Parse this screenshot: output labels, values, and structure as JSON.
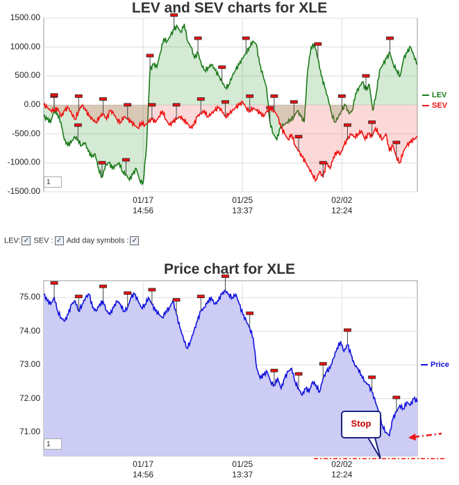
{
  "chart_data": [
    {
      "type": "line",
      "title": "LEV and SEV charts for XLE",
      "yticks": [
        "1500.00",
        "1000.00",
        "500.00",
        "0.00",
        "-500.00",
        "-1000.00",
        "-1500.00"
      ],
      "ytick_values": [
        1500,
        1000,
        500,
        0,
        -500,
        -1000,
        -1500
      ],
      "ylim": [
        -1500,
        1500
      ],
      "xticks": [
        {
          "d": "01/17",
          "t": "14:56"
        },
        {
          "d": "01/25",
          "t": "13:37"
        },
        {
          "d": "02/02",
          "t": "12:24"
        }
      ],
      "grid": true,
      "legend_position": "right",
      "zoom_value": "1",
      "series": [
        {
          "name": "LEV",
          "color": "#1a7a1a",
          "values": [
            -200,
            -250,
            -300,
            -100,
            -150,
            -300,
            -600,
            -700,
            -650,
            -550,
            -600,
            -700,
            -650,
            -800,
            -900,
            -850,
            -1100,
            -1250,
            -1050,
            -1000,
            -1100,
            -1050,
            -1000,
            -1150,
            -1200,
            -1300,
            -1200,
            -1100,
            -1300,
            -1350,
            -700,
            600,
            700,
            650,
            900,
            1150,
            1100,
            1200,
            1300,
            1350,
            1250,
            1400,
            1100,
            1000,
            800,
            900,
            700,
            600,
            650,
            700,
            600,
            500,
            400,
            300,
            350,
            500,
            600,
            700,
            800,
            900,
            1000,
            1100,
            1050,
            700,
            500,
            300,
            -300,
            -500,
            -600,
            -400,
            -350,
            -300,
            -250,
            -200,
            -100,
            -200,
            -300,
            600,
            1000,
            1050,
            800,
            500,
            300,
            100,
            -150,
            -300,
            -200,
            -100,
            0,
            -150,
            -100,
            200,
            300,
            400,
            250,
            350,
            -100,
            200,
            600,
            700,
            800,
            900,
            700,
            600,
            500,
            800,
            900,
            1000,
            850,
            700
          ]
        },
        {
          "name": "SEV",
          "color": "#ee1111",
          "values": [
            0,
            -50,
            -100,
            -80,
            -60,
            -200,
            -100,
            -50,
            -150,
            -250,
            -100,
            0,
            -100,
            -200,
            -250,
            -300,
            -200,
            -150,
            -250,
            -100,
            -150,
            -250,
            -300,
            -200,
            -250,
            -300,
            -350,
            -400,
            -300,
            -350,
            -300,
            -250,
            -300,
            -200,
            -100,
            -250,
            -350,
            -300,
            -250,
            -200,
            -250,
            -300,
            -400,
            -350,
            -200,
            -150,
            -100,
            -200,
            -150,
            -100,
            -50,
            -100,
            -200,
            -150,
            -100,
            -50,
            0,
            50,
            -50,
            -100,
            -50,
            -100,
            -150,
            -200,
            -100,
            -50,
            -100,
            -200,
            -400,
            -500,
            -600,
            -500,
            -700,
            -800,
            -900,
            -1000,
            -1100,
            -1200,
            -1300,
            -1150,
            -1250,
            -1000,
            -1100,
            -900,
            -800,
            -850,
            -700,
            -600,
            -500,
            -550,
            -500,
            -450,
            -600,
            -500,
            -550,
            -400,
            -500,
            -600,
            -500,
            -800,
            -700,
            -900,
            -1000,
            -800,
            -700,
            -650,
            -600,
            -550
          ]
        }
      ]
    },
    {
      "type": "area",
      "title": "Price chart for XLE",
      "yticks": [
        "75.00",
        "74.00",
        "73.00",
        "72.00",
        "71.00"
      ],
      "ytick_values": [
        75,
        74,
        73,
        72,
        71
      ],
      "ylim": [
        70.3,
        75.5
      ],
      "xticks": [
        {
          "d": "01/17",
          "t": "14:56"
        },
        {
          "d": "01/25",
          "t": "13:37"
        },
        {
          "d": "02/02",
          "t": "12:24"
        }
      ],
      "grid": true,
      "legend_position": "right",
      "zoom_value": "1",
      "series": [
        {
          "name": "Price",
          "color": "#1010dd",
          "values": [
            75.1,
            74.9,
            74.8,
            75.0,
            74.6,
            74.4,
            74.3,
            74.5,
            74.8,
            74.9,
            74.6,
            74.8,
            75.0,
            75.1,
            74.7,
            74.6,
            74.8,
            74.9,
            74.6,
            74.5,
            74.7,
            74.9,
            74.8,
            74.6,
            74.7,
            75.0,
            75.1,
            74.9,
            74.7,
            74.8,
            75.0,
            74.8,
            74.6,
            74.5,
            74.4,
            74.6,
            74.7,
            74.9,
            74.5,
            74.1,
            73.8,
            73.5,
            73.7,
            74.0,
            74.3,
            74.6,
            74.7,
            74.9,
            75.0,
            74.8,
            74.9,
            75.1,
            75.2,
            75.1,
            75.0,
            75.1,
            74.8,
            74.5,
            74.3,
            74.1,
            73.8,
            72.9,
            72.6,
            72.7,
            72.8,
            72.5,
            72.4,
            72.6,
            72.3,
            72.6,
            72.8,
            72.9,
            72.5,
            72.3,
            72.1,
            72.3,
            72.2,
            72.5,
            72.4,
            72.2,
            72.6,
            72.8,
            72.9,
            73.2,
            73.5,
            73.7,
            73.4,
            73.6,
            73.3,
            73.0,
            72.9,
            72.7,
            72.5,
            72.4,
            72.2,
            71.9,
            71.6,
            71.2,
            71.0,
            70.9,
            71.4,
            71.6,
            71.8,
            71.7,
            71.9,
            71.8,
            72.0,
            71.9
          ]
        }
      ],
      "annotation": "Stop"
    }
  ],
  "controls": {
    "lev_label": "LEV:",
    "sev_label": "SEV :",
    "day_label": "Add day symbols :",
    "check_mark": "✓"
  }
}
